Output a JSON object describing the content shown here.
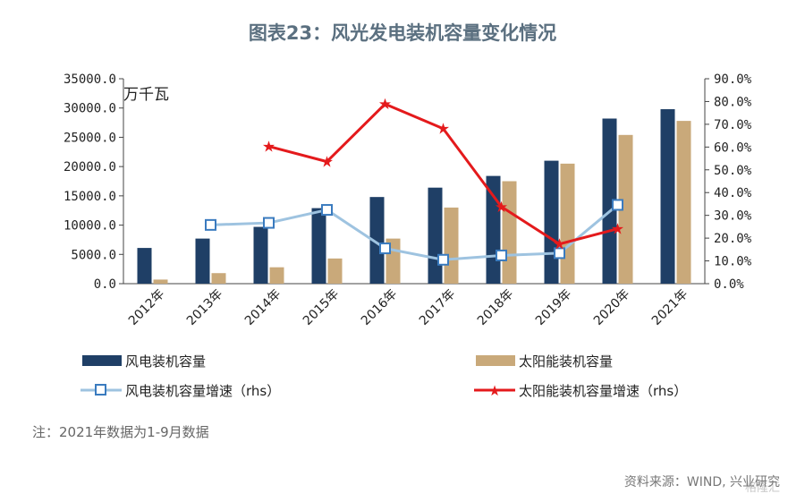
{
  "chart_data": {
    "type": "bar+line",
    "title": "图表23：风光发电装机容量变化情况",
    "unit_label": "万千瓦",
    "categories": [
      "2012年",
      "2013年",
      "2014年",
      "2015年",
      "2016年",
      "2017年",
      "2018年",
      "2019年",
      "2020年",
      "2021年"
    ],
    "y_left": {
      "ylim": [
        0,
        35000
      ],
      "ticks": [
        "0.0",
        "5000.0",
        "10000.0",
        "15000.0",
        "20000.0",
        "25000.0",
        "30000.0",
        "35000.0"
      ]
    },
    "y_right": {
      "ylim": [
        0,
        90
      ],
      "ticks": [
        "0.0%",
        "10.0%",
        "20.0%",
        "30.0%",
        "40.0%",
        "50.0%",
        "60.0%",
        "70.0%",
        "80.0%",
        "90.0%"
      ]
    },
    "series": [
      {
        "name": "风电装机容量",
        "type": "bar",
        "axis": "left",
        "color": "#1f3f66",
        "values": [
          6100,
          7700,
          9700,
          12900,
          14800,
          16400,
          18400,
          21000,
          28200,
          29800
        ]
      },
      {
        "name": "太阳能装机容量",
        "type": "bar",
        "axis": "left",
        "color": "#c9a97a",
        "values": [
          700,
          1800,
          2800,
          4300,
          7700,
          13000,
          17500,
          20500,
          25400,
          27800
        ]
      },
      {
        "name": "风电装机容量增速（rhs）",
        "type": "line",
        "axis": "right",
        "color": "#9ec3e0",
        "marker": "square",
        "values": [
          null,
          25.8,
          26.7,
          32.4,
          15.5,
          10.5,
          12.4,
          13.4,
          34.6,
          null
        ]
      },
      {
        "name": "太阳能装机容量增速（rhs）",
        "type": "line",
        "axis": "right",
        "color": "#e41a1c",
        "marker": "star",
        "values": [
          null,
          null,
          60.3,
          53.6,
          78.9,
          68.1,
          33.8,
          17.4,
          24.1,
          null
        ]
      }
    ]
  },
  "note": "注：2021年数据为1-9月数据",
  "source": "资料来源：WIND, 兴业研究",
  "watermark": "格隆汇"
}
